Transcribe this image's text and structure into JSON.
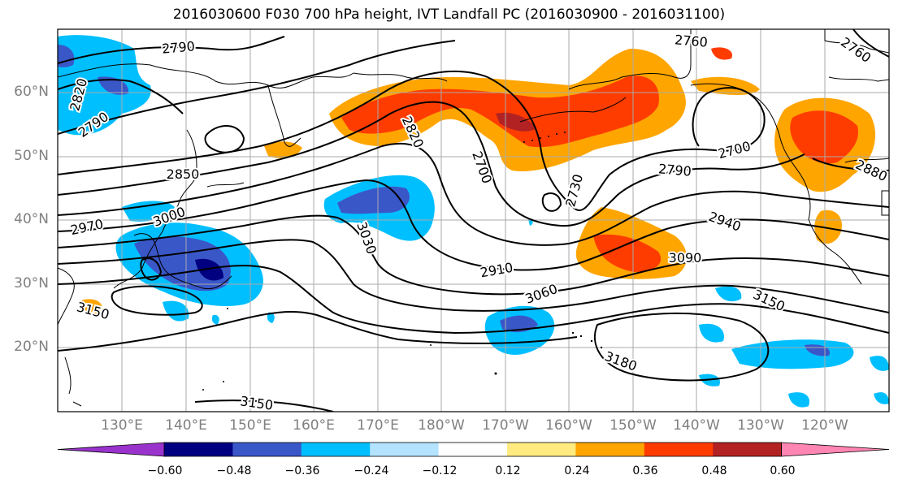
{
  "title": "2016030600 F030 700 hPa height, IVT Landfall PC (2016030900 - 2016031100)",
  "lat_labels": [
    "60°N",
    "50°N",
    "40°N",
    "30°N",
    "20°N"
  ],
  "lon_labels": [
    "130°E",
    "140°E",
    "150°E",
    "160°E",
    "170°E",
    "180°W",
    "170°W",
    "160°W",
    "150°W",
    "140°W",
    "130°W",
    "120°W"
  ],
  "contour_labels": [
    "2790",
    "2820",
    "2790",
    "2850",
    "2970",
    "3000",
    "3030",
    "2820",
    "2700",
    "2730",
    "2760",
    "2760",
    "2700",
    "2790",
    "2880",
    "2940",
    "3090",
    "2910",
    "3060",
    "3150",
    "3150",
    "3180",
    "3150"
  ],
  "colorbar": {
    "ticks": [
      "−0.60",
      "−0.48",
      "−0.36",
      "−0.24",
      "−0.12",
      "0.12",
      "0.24",
      "0.36",
      "0.48",
      "0.60"
    ],
    "colors": [
      "#9933cc",
      "#000080",
      "#3a57c8",
      "#00bfff",
      "#b3e3ff",
      "#ffffff",
      "#ffeb80",
      "#ffa500",
      "#ff3c00",
      "#b22222",
      "#ff85b3"
    ]
  }
}
